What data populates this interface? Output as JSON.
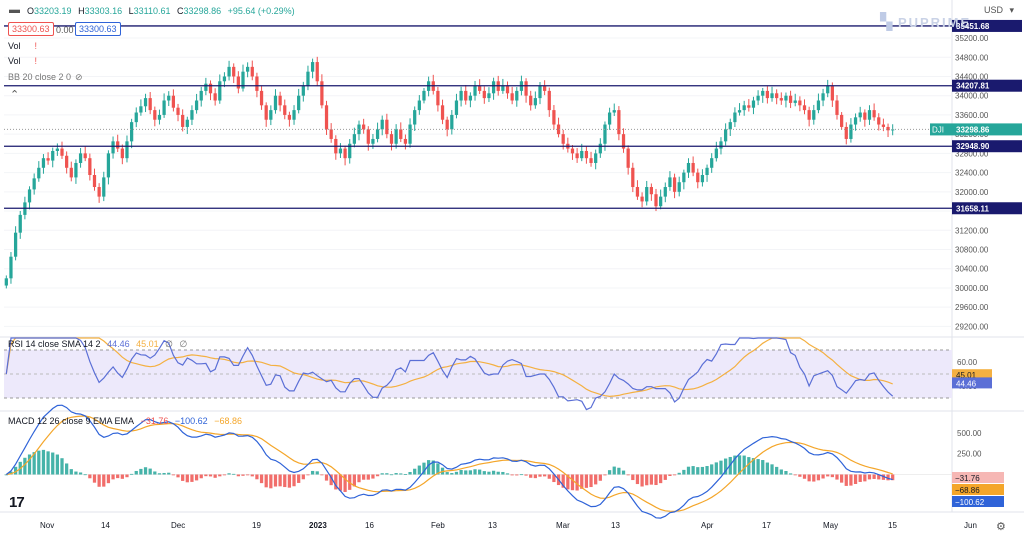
{
  "header": {
    "currency": "USD",
    "ohlc": {
      "o_label": "O",
      "o": "33203.19",
      "h_label": "H",
      "h": "33303.16",
      "l_label": "L",
      "l": "33110.61",
      "c_label": "C",
      "c": "33298.86",
      "change": "+95.64 (+0.29%)"
    },
    "price_left": "33300.63",
    "spread": "0.00",
    "price_right": "33300.63",
    "vol_label_1": "Vol",
    "vol_label_2": "Vol",
    "bb_label": "BB 20 close 2 0",
    "brand": "PUPRIME"
  },
  "colors": {
    "up": "#26a69a",
    "down": "#ef5350",
    "level": "#1a1a6e",
    "rsi": "#5b6fd6",
    "rsi_sma": "#f4b041",
    "macd": "#2f63d8",
    "signal": "#f4a62a",
    "band": "#ede9fb"
  },
  "chart_data": [
    {
      "type": "candlestick",
      "symbol": "DJI",
      "ylim": [
        29000,
        35700
      ],
      "y_ticks": [
        29200,
        29600,
        30000,
        30400,
        30800,
        31200,
        31600,
        32000,
        32400,
        32800,
        33200,
        33600,
        34000,
        34400,
        34800,
        35200
      ],
      "x_ticks": [
        "Nov",
        "14",
        "Dec",
        "19",
        "2023",
        "16",
        "Feb",
        "13",
        "Mar",
        "13",
        "Apr",
        "17",
        "May",
        "15",
        "Jun"
      ],
      "last_price": "33298.86",
      "levels": [
        {
          "value": 35451.68,
          "label": "35451.68"
        },
        {
          "value": 34207.81,
          "label": "34207.81"
        },
        {
          "value": 32948.9,
          "label": "32948.90"
        },
        {
          "value": 31658.11,
          "label": "31658.11"
        }
      ],
      "closes": [
        30200,
        30650,
        31150,
        31520,
        31780,
        32050,
        32280,
        32500,
        32700,
        32650,
        32850,
        32900,
        32750,
        32500,
        32300,
        32600,
        32800,
        32700,
        32350,
        32100,
        31900,
        32300,
        32800,
        33050,
        32900,
        32700,
        33050,
        33450,
        33650,
        33780,
        33950,
        33700,
        33500,
        33600,
        33900,
        34000,
        33750,
        33600,
        33350,
        33500,
        33700,
        33900,
        34100,
        34250,
        34050,
        33900,
        34300,
        34400,
        34600,
        34400,
        34150,
        34500,
        34600,
        34400,
        34100,
        33800,
        33500,
        33700,
        34000,
        33800,
        33600,
        33500,
        33700,
        34000,
        34200,
        34500,
        34700,
        34300,
        33800,
        33300,
        33100,
        32800,
        32900,
        32700,
        33000,
        33200,
        33400,
        33300,
        33000,
        33100,
        33300,
        33500,
        33200,
        33000,
        33300,
        33100,
        33000,
        33400,
        33700,
        33900,
        34100,
        34300,
        34100,
        33800,
        33500,
        33300,
        33600,
        33900,
        34100,
        33900,
        34000,
        34200,
        34100,
        33950,
        34050,
        34300,
        34100,
        34200,
        34050,
        33900,
        34100,
        34300,
        34000,
        33800,
        33950,
        34200,
        34100,
        33700,
        33400,
        33200,
        33000,
        32900,
        32800,
        32700,
        32850,
        32700,
        32600,
        32800,
        33000,
        33400,
        33650,
        33700,
        33200,
        32900,
        32500,
        32100,
        31900,
        31800,
        32100,
        31950,
        31700,
        31900,
        32100,
        32300,
        32000,
        32200,
        32400,
        32600,
        32400,
        32200,
        32350,
        32500,
        32700,
        32900,
        33050,
        33300,
        33450,
        33650,
        33700,
        33800,
        33750,
        33900,
        34000,
        34100,
        33950,
        34050,
        33950,
        33900,
        34000,
        33850,
        33900,
        33800,
        33700,
        33500,
        33700,
        33900,
        34050,
        34200,
        33900,
        33600,
        33350,
        33100,
        33400,
        33550,
        33650,
        33500,
        33700,
        33550,
        33400,
        33350,
        33280,
        33298.86
      ]
    },
    {
      "type": "line",
      "title": "RSI 14 close SMA 14 2",
      "values_label": [
        "44.46",
        "45.01",
        "∅",
        "∅"
      ],
      "ylim": [
        20,
        80
      ],
      "y_ticks": [
        60,
        40
      ],
      "band": [
        30,
        70
      ],
      "series": [
        {
          "name": "RSI",
          "last": "44.46"
        },
        {
          "name": "SMA",
          "last": "45.01"
        }
      ]
    },
    {
      "type": "bar+line",
      "title": "MACD 12 26 close 9 EMA EMA",
      "values_label": [
        "−31.76",
        "−100.62",
        "−68.86"
      ],
      "ylim": [
        -450,
        750
      ],
      "y_ticks": [
        500,
        250
      ],
      "tick_labels": [
        "500.00",
        "250.00"
      ],
      "series": [
        {
          "name": "Histogram",
          "last": "−31.76"
        },
        {
          "name": "MACD",
          "last": "−100.62"
        },
        {
          "name": "Signal",
          "last": "−68.86"
        }
      ]
    }
  ]
}
